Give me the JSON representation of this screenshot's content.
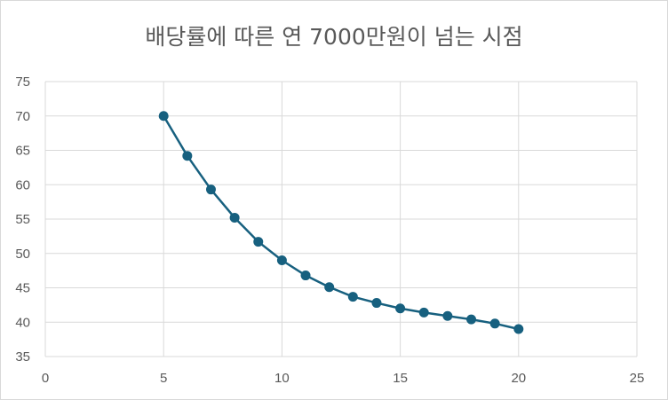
{
  "chart_data": {
    "type": "scatter",
    "title": "배당률에 따른 연 7000만원이 넘는 시점",
    "xlim": [
      0,
      25
    ],
    "ylim": [
      35,
      75
    ],
    "x_ticks": [
      0,
      5,
      10,
      15,
      20,
      25
    ],
    "y_ticks": [
      35,
      40,
      45,
      50,
      55,
      60,
      65,
      70,
      75
    ],
    "grid": true,
    "legend": "none",
    "series": [
      {
        "color": "#17607f",
        "x": [
          5,
          6,
          7,
          8,
          9,
          10,
          11,
          12,
          13,
          14,
          15,
          16,
          17,
          18,
          19,
          20
        ],
        "y": [
          70,
          64.2,
          59.3,
          55.2,
          51.7,
          49,
          46.8,
          45.1,
          43.7,
          42.8,
          42,
          41.4,
          40.9,
          40.4,
          39.8,
          39
        ]
      }
    ]
  }
}
